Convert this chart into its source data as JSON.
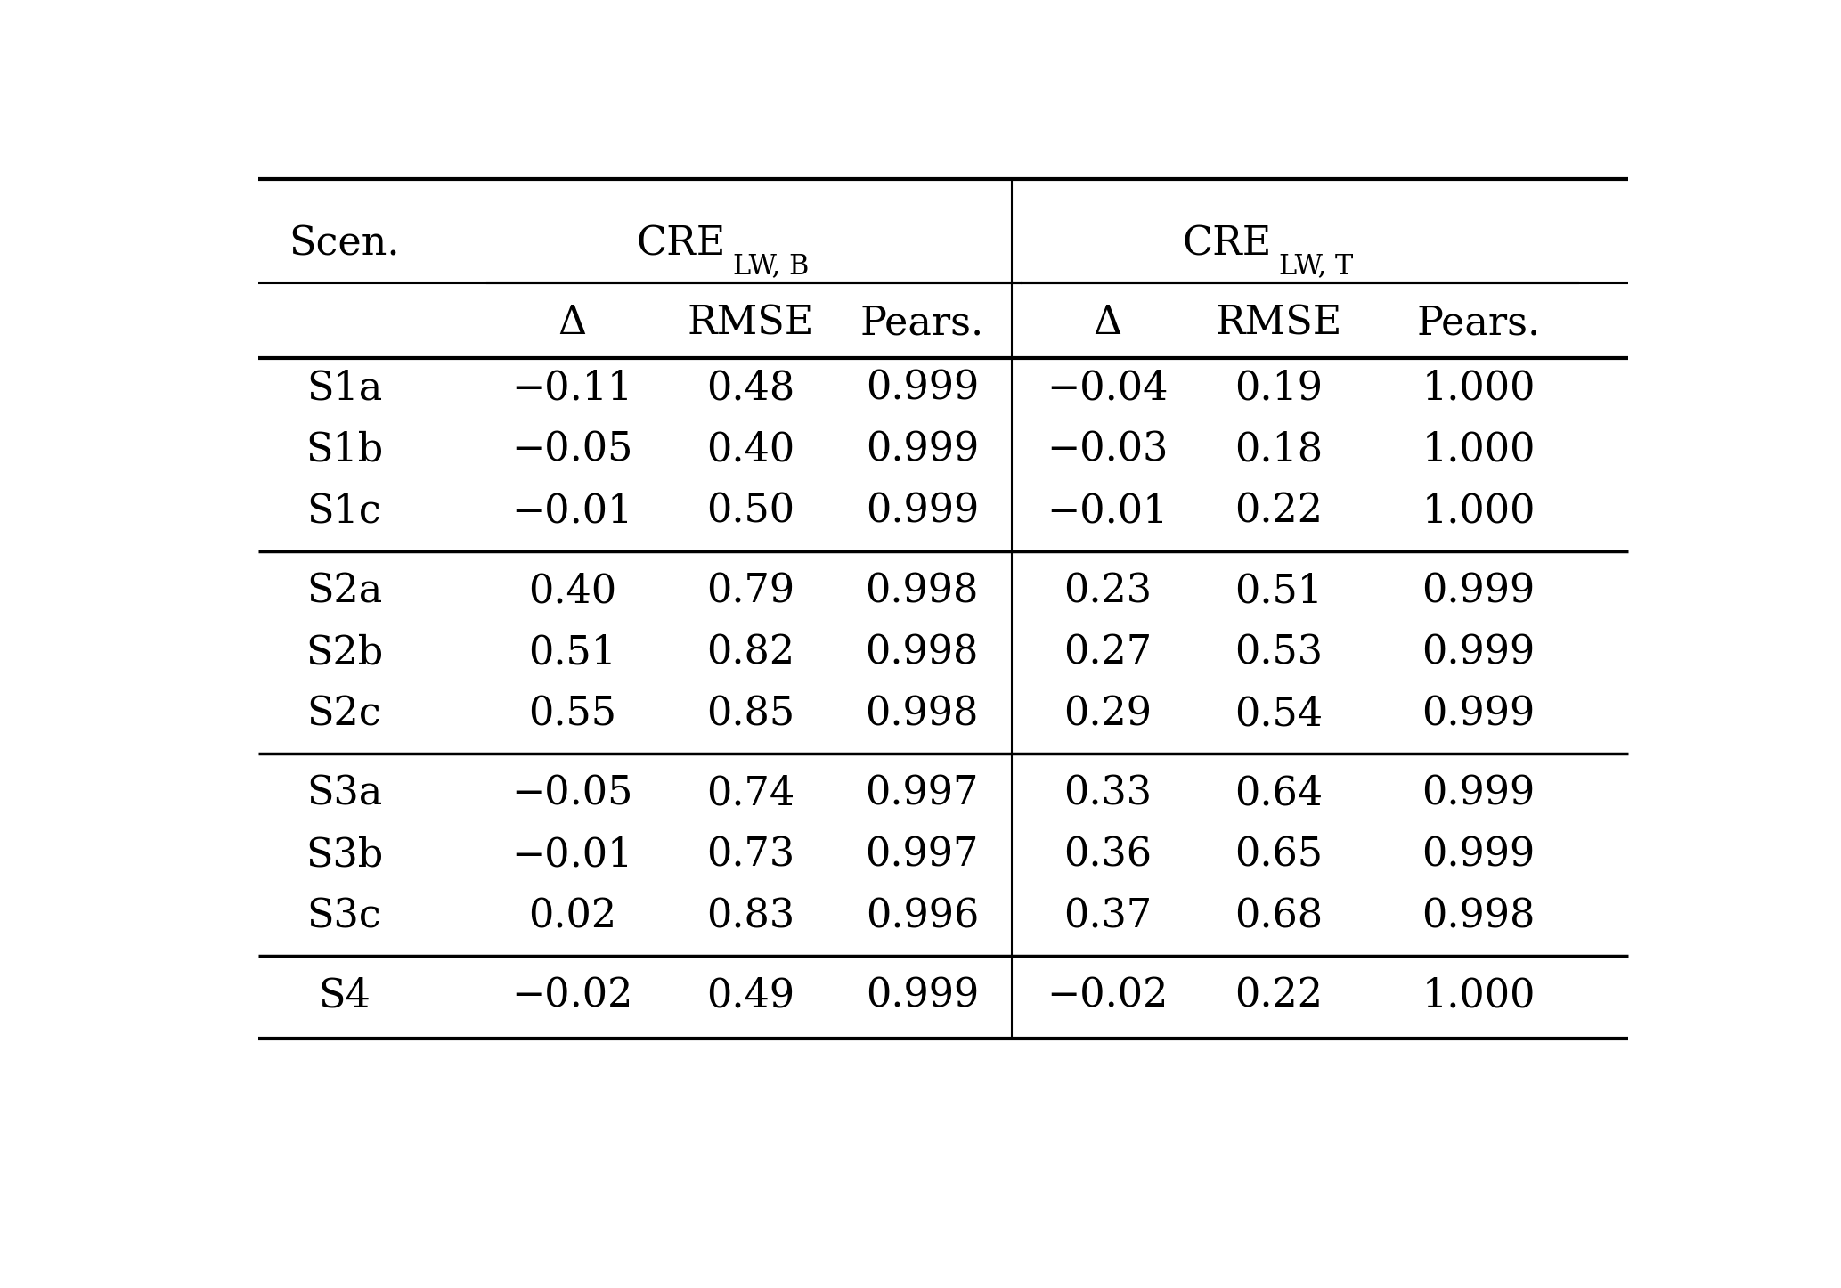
{
  "rows": [
    [
      "S1a",
      "−0.11",
      "0.48",
      "0.999",
      "−0.04",
      "0.19",
      "1.000"
    ],
    [
      "S1b",
      "−0.05",
      "0.40",
      "0.999",
      "−0.03",
      "0.18",
      "1.000"
    ],
    [
      "S1c",
      "−0.01",
      "0.50",
      "0.999",
      "−0.01",
      "0.22",
      "1.000"
    ],
    [
      "S2a",
      "0.40",
      "0.79",
      "0.998",
      "0.23",
      "0.51",
      "0.999"
    ],
    [
      "S2b",
      "0.51",
      "0.82",
      "0.998",
      "0.27",
      "0.53",
      "0.999"
    ],
    [
      "S2c",
      "0.55",
      "0.85",
      "0.998",
      "0.29",
      "0.54",
      "0.999"
    ],
    [
      "S3a",
      "−0.05",
      "0.74",
      "0.997",
      "0.33",
      "0.64",
      "0.999"
    ],
    [
      "S3b",
      "−0.01",
      "0.73",
      "0.997",
      "0.36",
      "0.65",
      "0.999"
    ],
    [
      "S3c",
      "0.02",
      "0.83",
      "0.996",
      "0.37",
      "0.68",
      "0.998"
    ],
    [
      "S4",
      "−0.02",
      "0.49",
      "0.999",
      "−0.02",
      "0.22",
      "1.000"
    ]
  ],
  "group_separators_after": [
    2,
    5,
    8
  ],
  "bg_color": "#ffffff",
  "text_color": "#000000",
  "font_size": 32,
  "sub_font_size": 22,
  "header_font_size": 32
}
